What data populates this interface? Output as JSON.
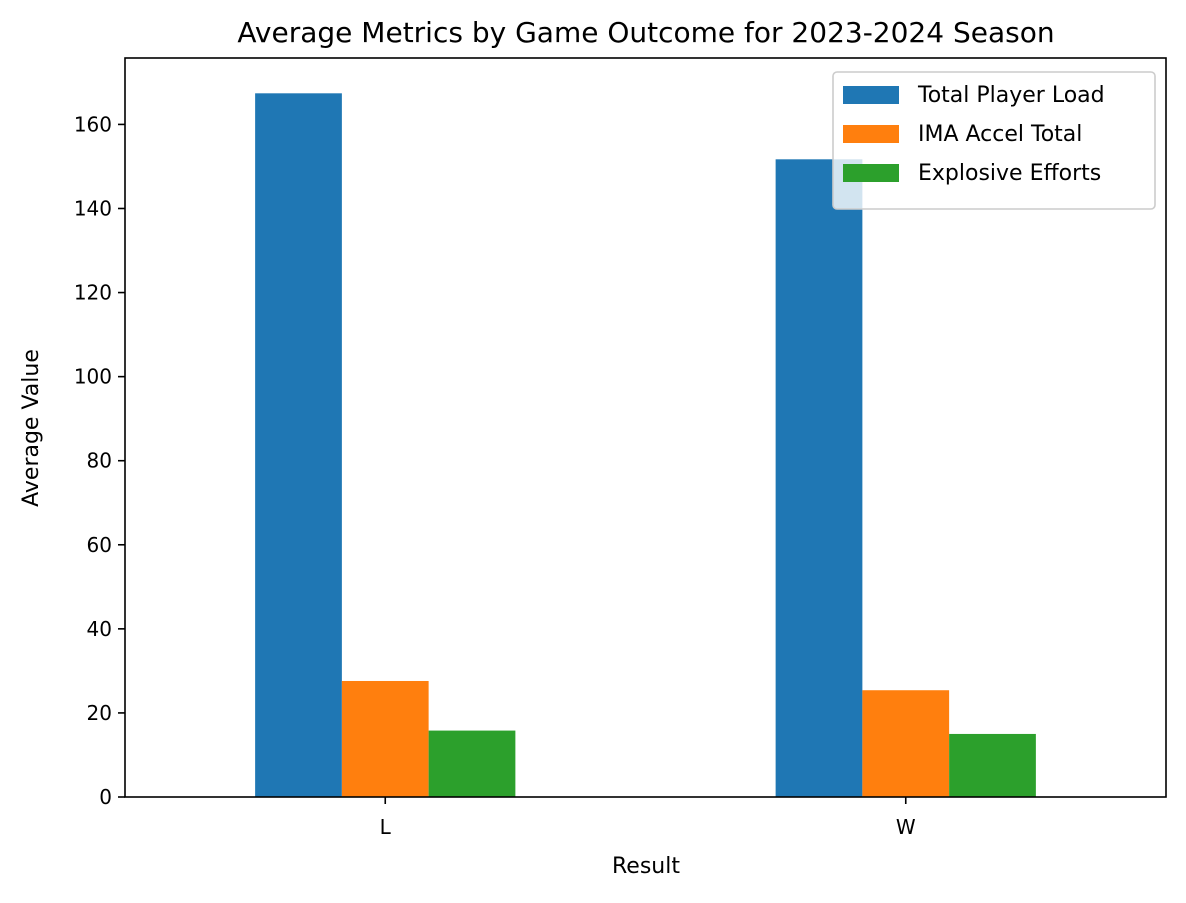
{
  "chart_data": {
    "type": "bar",
    "title": "Average Metrics by Game Outcome for 2023-2024 Season",
    "xlabel": "Result",
    "ylabel": "Average Value",
    "categories": [
      "L",
      "W"
    ],
    "series": [
      {
        "name": "Total Player Load",
        "color": "#1f77b4",
        "values": [
          167.4,
          151.7
        ]
      },
      {
        "name": "IMA Accel Total",
        "color": "#ff7f0e",
        "values": [
          27.6,
          25.4
        ]
      },
      {
        "name": "Explosive Efforts",
        "color": "#2ca02c",
        "values": [
          15.8,
          15.0
        ]
      }
    ],
    "ylim": [
      0,
      175.8
    ],
    "yticks": [
      0,
      20,
      40,
      60,
      80,
      100,
      120,
      140,
      160
    ],
    "grid": false,
    "legend_position": "top-right"
  }
}
